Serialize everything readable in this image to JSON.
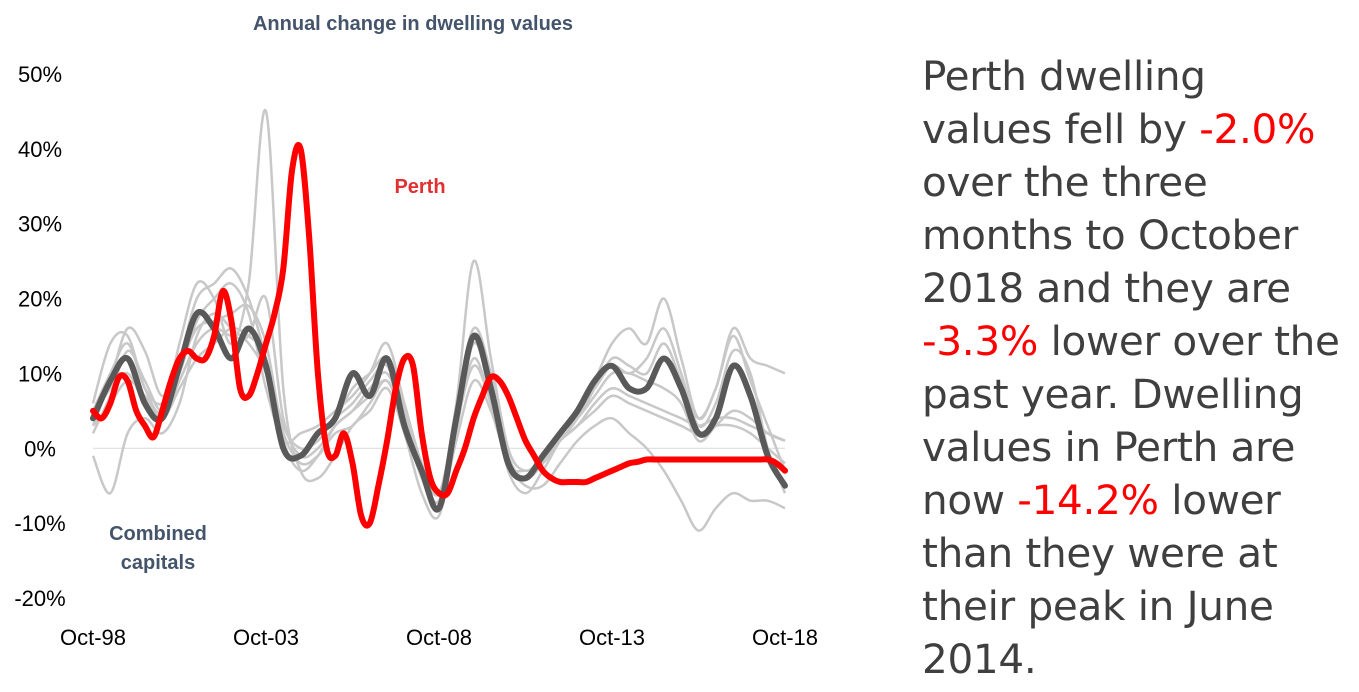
{
  "chart_data": {
    "type": "line",
    "title": "Annual change in dwelling values",
    "xlabel": "",
    "ylabel": "",
    "x_tick_labels": [
      "Oct-98",
      "Oct-03",
      "Oct-08",
      "Oct-13",
      "Oct-18"
    ],
    "x_range": [
      1998.75,
      2018.75
    ],
    "y_tick_labels": [
      "50%",
      "40%",
      "30%",
      "20%",
      "10%",
      "0%",
      "-10%",
      "-20%"
    ],
    "y_ticks": [
      50,
      40,
      30,
      20,
      10,
      0,
      -10,
      -20
    ],
    "ylim": [
      -20,
      50
    ],
    "grid": false,
    "zero_line": true,
    "annotations": [
      {
        "text": "Perth",
        "series": "Perth"
      },
      {
        "text": "Combined",
        "series": "Combined capitals"
      },
      {
        "text": "capitals",
        "series": "Combined capitals"
      }
    ],
    "series": [
      {
        "name": "Perth",
        "color": "#ff0000",
        "width": 6,
        "x": [
          1998.75,
          1999.0,
          1999.25,
          1999.5,
          1999.75,
          2000.0,
          2000.25,
          2000.5,
          2000.75,
          2001.0,
          2001.25,
          2001.5,
          2001.75,
          2002.0,
          2002.25,
          2002.5,
          2002.75,
          2003.0,
          2003.25,
          2003.5,
          2003.75,
          2004.0,
          2004.25,
          2004.5,
          2004.75,
          2005.0,
          2005.25,
          2005.5,
          2005.75,
          2006.0,
          2006.25,
          2006.5,
          2006.75,
          2007.0,
          2007.25,
          2007.5,
          2007.75,
          2008.0,
          2008.25,
          2008.5,
          2008.75,
          2009.0,
          2009.25,
          2009.5,
          2009.75,
          2010.0,
          2010.25,
          2010.5,
          2010.75,
          2011.0,
          2011.25,
          2011.5,
          2011.75,
          2012.0,
          2012.25,
          2012.5,
          2012.75,
          2013.0,
          2013.25,
          2013.5,
          2013.75,
          2014.0,
          2014.25,
          2014.5,
          2014.75,
          2015.0,
          2015.5,
          2016.0,
          2016.5,
          2017.0,
          2017.5,
          2018.0,
          2018.25,
          2018.5,
          2018.75
        ],
        "values": [
          5,
          4,
          6,
          9.5,
          9,
          5,
          3,
          1.5,
          5,
          9,
          12,
          13,
          12,
          12,
          15,
          21,
          17,
          8,
          7,
          10,
          14,
          18,
          24,
          37,
          40,
          28,
          10,
          0,
          -1,
          2,
          -2,
          -9,
          -10,
          -5,
          1,
          8,
          12,
          11,
          2,
          -4,
          -6,
          -6,
          -3,
          0,
          4,
          7,
          9.5,
          9,
          7,
          4,
          1,
          -1,
          -3,
          -4,
          -4.5,
          -4.5,
          -4.5,
          -4.5,
          -4,
          -3.5,
          -3,
          -2.5,
          -2,
          -1.8,
          -1.5,
          -1.5,
          -1.5,
          -1.5,
          -1.5,
          -1.5,
          -1.5,
          -1.5,
          -1.5,
          -2,
          -3
        ]
      },
      {
        "name": "Combined capitals",
        "color": "#595959",
        "width": 6,
        "x": [
          1998.75,
          1999.25,
          1999.75,
          2000.25,
          2000.75,
          2001.25,
          2001.75,
          2002.25,
          2002.75,
          2003.25,
          2003.75,
          2004.25,
          2004.75,
          2005.25,
          2005.75,
          2006.25,
          2006.75,
          2007.25,
          2007.75,
          2008.25,
          2008.75,
          2009.25,
          2009.75,
          2010.25,
          2010.75,
          2011.25,
          2011.75,
          2012.25,
          2012.75,
          2013.25,
          2013.75,
          2014.25,
          2014.75,
          2015.25,
          2015.75,
          2016.25,
          2016.75,
          2017.25,
          2017.75,
          2018.25,
          2018.75
        ],
        "values": [
          4,
          9,
          12,
          6,
          4,
          11,
          18,
          16,
          12,
          16,
          11,
          0,
          -1,
          2,
          4,
          10,
          7,
          12,
          3,
          -3,
          -8,
          4,
          15,
          8,
          -2,
          -4,
          -1,
          2,
          5,
          9,
          11,
          8,
          8,
          12,
          8,
          2,
          4,
          11,
          7,
          -1,
          -5
        ]
      }
    ],
    "background_series": {
      "color": "#c8c8c8",
      "width": 2.5,
      "note": "other capital cities, unlabeled",
      "x": [
        1998.75,
        1999.25,
        1999.75,
        2000.25,
        2000.75,
        2001.25,
        2001.75,
        2002.25,
        2002.75,
        2003.25,
        2003.75,
        2004.25,
        2004.75,
        2005.25,
        2005.75,
        2006.25,
        2006.75,
        2007.25,
        2007.75,
        2008.25,
        2008.75,
        2009.25,
        2009.75,
        2010.25,
        2010.75,
        2011.25,
        2011.75,
        2012.25,
        2012.75,
        2013.25,
        2013.75,
        2014.25,
        2014.75,
        2015.25,
        2015.75,
        2016.25,
        2016.75,
        2017.25,
        2017.75,
        2018.25,
        2018.75
      ],
      "lines": [
        [
          6,
          14,
          15,
          8,
          5,
          14,
          22,
          20,
          14,
          22,
          45,
          8,
          -3,
          -4,
          -1,
          3,
          5,
          8,
          2,
          -6,
          -9,
          2,
          14,
          7,
          -3,
          -6,
          -3,
          1,
          4,
          9,
          14,
          16,
          14,
          20,
          12,
          4,
          8,
          15,
          9,
          3,
          -3
        ],
        [
          3,
          9,
          16,
          13,
          7,
          12,
          20,
          22,
          24,
          20,
          12,
          3,
          0,
          1,
          4,
          6,
          9,
          11,
          4,
          -3,
          -7,
          5,
          16,
          10,
          -1,
          -4,
          -2,
          2,
          5,
          8,
          11,
          10,
          12,
          16,
          10,
          3,
          6,
          13,
          10,
          0,
          -6
        ],
        [
          2,
          7,
          13,
          9,
          5,
          10,
          17,
          20,
          22,
          18,
          8,
          1,
          2,
          3,
          5,
          7,
          10,
          14,
          6,
          -2,
          -6,
          6,
          25,
          12,
          0,
          -3,
          -1,
          2,
          4,
          7,
          10,
          10,
          9,
          8,
          6,
          1,
          3,
          5,
          4,
          2,
          1
        ],
        [
          -1,
          -6,
          2,
          4,
          2,
          6,
          15,
          18,
          16,
          14,
          10,
          2,
          -2,
          -1,
          2,
          3,
          6,
          9,
          3,
          -4,
          -8,
          1,
          9,
          5,
          -2,
          -5,
          -5,
          -2,
          1,
          3,
          4,
          2,
          0,
          -3,
          -7,
          -11,
          -8,
          -6,
          -7,
          -7,
          -8
        ],
        [
          4,
          8,
          10,
          6,
          4,
          9,
          14,
          16,
          15,
          15,
          20,
          4,
          -1,
          0,
          3,
          5,
          7,
          9,
          4,
          -2,
          -6,
          3,
          12,
          6,
          -2,
          -3,
          -2,
          1,
          3,
          6,
          8,
          7,
          6,
          5,
          4,
          3,
          4,
          4,
          3,
          2,
          1
        ],
        [
          5,
          10,
          14,
          8,
          6,
          11,
          16,
          17,
          18,
          19,
          14,
          2,
          -1,
          2,
          4,
          8,
          10,
          12,
          5,
          -3,
          -7,
          4,
          14,
          9,
          -1,
          -4,
          -1,
          2,
          4,
          8,
          12,
          11,
          10,
          14,
          9,
          4,
          8,
          16,
          12,
          11,
          10
        ],
        [
          3,
          6,
          9,
          7,
          4,
          8,
          12,
          14,
          16,
          15,
          12,
          1,
          -3,
          -1,
          3,
          5,
          8,
          10,
          4,
          -3,
          -6,
          3,
          11,
          6,
          -2,
          -4,
          -2,
          1,
          3,
          5,
          7,
          6,
          5,
          4,
          3,
          2,
          3,
          3,
          2,
          0,
          -2
        ]
      ]
    }
  },
  "commentary": {
    "l1": "Perth dwelling",
    "l2a": "values fell by ",
    "l2b": "-2.0%",
    "l3": "over the three",
    "l4": "months to October",
    "l5": "2018 and they are",
    "l6a": "-3.3%",
    "l6b": " lower over the",
    "l7": "past year. Dwelling",
    "l8": "values in Perth are",
    "l9a": "now ",
    "l9b": "-14.2%",
    "l9c": " lower",
    "l10": "than they were at",
    "l11": "their peak in June",
    "l12": "2014."
  }
}
